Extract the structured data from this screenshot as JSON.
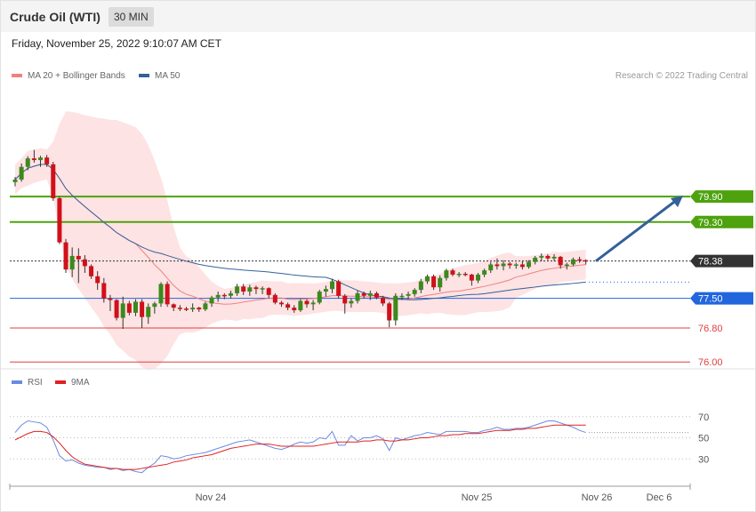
{
  "header": {
    "title": "Crude Oil (WTI)",
    "timeframe": "30 MIN"
  },
  "datetime": "Friday, November 25, 2022 9:10:07 AM CET",
  "legend": {
    "ma20": {
      "label": "MA 20 + Bollinger Bands",
      "color": "#f08080"
    },
    "ma50": {
      "label": "MA 50",
      "color": "#34609a"
    }
  },
  "credit": "Research © 2022 Trading Central",
  "rsi_legend": {
    "rsi": {
      "label": "RSI",
      "color": "#6a8be0"
    },
    "ma9": {
      "label": "9MA",
      "color": "#e02020"
    }
  },
  "chart_data": [
    {
      "type": "candlestick",
      "title": "",
      "y_range": [
        75.9,
        81.6
      ],
      "x_ticks": [
        "Nov 24",
        "Nov 25",
        "Nov 26",
        "Dec 6"
      ],
      "levels": [
        {
          "value": 79.9,
          "label": "79.90",
          "color": "#4ea20e",
          "kind": "resistance"
        },
        {
          "value": 79.3,
          "label": "79.30",
          "color": "#4ea20e",
          "kind": "resistance"
        },
        {
          "value": 78.38,
          "label": "78.38",
          "color": "#333333",
          "kind": "last-price"
        },
        {
          "value": 77.5,
          "label": "77.50",
          "color": "#2266dd",
          "kind": "pivot"
        },
        {
          "value": 76.8,
          "label": "76.80",
          "color": "#e04040",
          "kind": "support"
        },
        {
          "value": 76.0,
          "label": "76.00",
          "color": "#e04040",
          "kind": "support"
        }
      ],
      "target_arrow": {
        "from": 78.38,
        "to": 79.9
      },
      "candles": [
        [
          80.24,
          80.36,
          80.14,
          80.3
        ],
        [
          80.3,
          80.68,
          80.25,
          80.6
        ],
        [
          80.6,
          80.85,
          80.52,
          80.8
        ],
        [
          80.8,
          81.0,
          80.7,
          80.76
        ],
        [
          80.76,
          80.86,
          80.6,
          80.82
        ],
        [
          80.82,
          80.88,
          80.6,
          80.66
        ],
        [
          80.66,
          80.72,
          79.8,
          79.86
        ],
        [
          79.86,
          79.9,
          78.78,
          78.82
        ],
        [
          78.82,
          78.9,
          78.1,
          78.18
        ],
        [
          78.18,
          78.7,
          78.0,
          78.5
        ],
        [
          78.5,
          78.68,
          77.86,
          78.42
        ],
        [
          78.42,
          78.52,
          78.1,
          78.26
        ],
        [
          78.26,
          78.3,
          77.96,
          78.02
        ],
        [
          78.02,
          78.14,
          77.7,
          77.86
        ],
        [
          77.86,
          77.98,
          77.4,
          77.5
        ],
        [
          77.5,
          77.58,
          77.2,
          77.46
        ],
        [
          77.46,
          77.48,
          76.98,
          77.04
        ],
        [
          77.04,
          77.54,
          76.78,
          77.38
        ],
        [
          77.38,
          77.44,
          77.1,
          77.16
        ],
        [
          77.16,
          77.48,
          77.08,
          77.42
        ],
        [
          77.42,
          77.48,
          76.8,
          77.06
        ],
        [
          77.06,
          77.38,
          76.9,
          77.3
        ],
        [
          77.3,
          77.42,
          77.14,
          77.38
        ],
        [
          77.38,
          77.88,
          77.3,
          77.84
        ],
        [
          77.84,
          77.9,
          77.3,
          77.36
        ],
        [
          77.36,
          77.38,
          77.2,
          77.28
        ],
        [
          77.28,
          77.34,
          77.2,
          77.26
        ],
        [
          77.26,
          77.3,
          77.2,
          77.24
        ],
        [
          77.24,
          77.38,
          77.18,
          77.28
        ],
        [
          77.28,
          77.3,
          77.18,
          77.24
        ],
        [
          77.24,
          77.42,
          77.2,
          77.38
        ],
        [
          77.38,
          77.56,
          77.3,
          77.52
        ],
        [
          77.52,
          77.66,
          77.42,
          77.58
        ],
        [
          77.58,
          77.62,
          77.48,
          77.56
        ],
        [
          77.56,
          77.68,
          77.5,
          77.62
        ],
        [
          77.62,
          77.84,
          77.56,
          77.78
        ],
        [
          77.78,
          77.84,
          77.58,
          77.66
        ],
        [
          77.66,
          77.82,
          77.56,
          77.76
        ],
        [
          77.76,
          77.8,
          77.6,
          77.72
        ],
        [
          77.72,
          77.78,
          77.6,
          77.74
        ],
        [
          77.74,
          77.76,
          77.5,
          77.58
        ],
        [
          77.58,
          77.62,
          77.36,
          77.4
        ],
        [
          77.4,
          77.44,
          77.3,
          77.36
        ],
        [
          77.36,
          77.4,
          77.22,
          77.28
        ],
        [
          77.28,
          77.34,
          77.16,
          77.22
        ],
        [
          77.22,
          77.48,
          77.18,
          77.44
        ],
        [
          77.44,
          77.48,
          77.28,
          77.36
        ],
        [
          77.36,
          77.46,
          77.22,
          77.4
        ],
        [
          77.4,
          77.7,
          77.36,
          77.66
        ],
        [
          77.66,
          77.8,
          77.54,
          77.72
        ],
        [
          77.72,
          77.96,
          77.62,
          77.9
        ],
        [
          77.9,
          77.94,
          77.5,
          77.56
        ],
        [
          77.56,
          77.6,
          77.14,
          77.38
        ],
        [
          77.38,
          77.5,
          77.28,
          77.44
        ],
        [
          77.44,
          77.68,
          77.38,
          77.62
        ],
        [
          77.62,
          77.66,
          77.5,
          77.56
        ],
        [
          77.56,
          77.68,
          77.46,
          77.62
        ],
        [
          77.62,
          77.66,
          77.48,
          77.52
        ],
        [
          77.52,
          77.56,
          77.32,
          77.38
        ],
        [
          77.38,
          77.42,
          76.82,
          76.98
        ],
        [
          76.98,
          77.62,
          76.86,
          77.56
        ],
        [
          77.56,
          77.62,
          77.46,
          77.56
        ],
        [
          77.56,
          77.66,
          77.48,
          77.6
        ],
        [
          77.6,
          77.74,
          77.54,
          77.7
        ],
        [
          77.7,
          77.96,
          77.62,
          77.9
        ],
        [
          77.9,
          78.06,
          77.84,
          78.02
        ],
        [
          78.02,
          78.06,
          77.7,
          77.76
        ],
        [
          77.76,
          78.04,
          77.66,
          77.98
        ],
        [
          77.98,
          78.2,
          77.92,
          78.16
        ],
        [
          78.16,
          78.2,
          78.02,
          78.06
        ],
        [
          78.06,
          78.12,
          78.0,
          78.08
        ],
        [
          78.08,
          78.12,
          78.02,
          78.06
        ],
        [
          78.06,
          78.08,
          77.8,
          77.92
        ],
        [
          77.92,
          78.1,
          77.86,
          78.06
        ],
        [
          78.06,
          78.2,
          78.0,
          78.16
        ],
        [
          78.16,
          78.36,
          78.1,
          78.3
        ],
        [
          78.3,
          78.44,
          78.18,
          78.26
        ],
        [
          78.26,
          78.4,
          78.16,
          78.32
        ],
        [
          78.32,
          78.36,
          78.2,
          78.28
        ],
        [
          78.28,
          78.34,
          78.2,
          78.3
        ],
        [
          78.3,
          78.38,
          78.18,
          78.24
        ],
        [
          78.24,
          78.4,
          78.2,
          78.36
        ],
        [
          78.36,
          78.5,
          78.3,
          78.46
        ],
        [
          78.46,
          78.56,
          78.38,
          78.5
        ],
        [
          78.5,
          78.54,
          78.4,
          78.44
        ],
        [
          78.44,
          78.54,
          78.38,
          78.48
        ],
        [
          78.48,
          78.5,
          78.2,
          78.28
        ],
        [
          78.28,
          78.34,
          78.18,
          78.3
        ],
        [
          78.3,
          78.46,
          78.26,
          78.42
        ],
        [
          78.42,
          78.48,
          78.34,
          78.4
        ],
        [
          78.4,
          78.42,
          78.3,
          78.38
        ]
      ]
    },
    {
      "type": "line",
      "title": "",
      "y_range": [
        10,
        90
      ],
      "y_ticks": [
        30,
        50,
        70
      ],
      "series": [
        {
          "name": "RSI",
          "values": [
            55,
            62,
            66,
            65,
            64,
            60,
            48,
            33,
            28,
            29,
            26,
            24,
            23,
            22,
            22,
            20,
            21,
            19,
            20,
            18,
            17,
            22,
            26,
            33,
            32,
            30,
            31,
            33,
            34,
            35,
            36,
            38,
            40,
            42,
            44,
            46,
            47,
            48,
            46,
            44,
            42,
            40,
            39,
            41,
            44,
            46,
            45,
            46,
            50,
            49,
            56,
            43,
            43,
            52,
            47,
            50,
            50,
            52,
            49,
            38,
            50,
            48,
            50,
            52,
            53,
            55,
            54,
            53,
            56,
            56,
            56,
            56,
            55,
            55,
            57,
            58,
            60,
            58,
            58,
            59,
            59,
            60,
            62,
            64,
            66,
            66,
            64,
            62,
            60,
            57,
            55
          ]
        },
        {
          "name": "9MA",
          "values": [
            48,
            51,
            54,
            56,
            56,
            55,
            51,
            45,
            38,
            32,
            28,
            25,
            24,
            23,
            22,
            21,
            21,
            20,
            20,
            20,
            21,
            22,
            23,
            24,
            25,
            27,
            28,
            29,
            31,
            32,
            33,
            34,
            36,
            38,
            40,
            41,
            42,
            43,
            44,
            44,
            44,
            43,
            42,
            42,
            42,
            42,
            42,
            42,
            43,
            44,
            45,
            46,
            46,
            46,
            46,
            47,
            47,
            48,
            48,
            47,
            47,
            48,
            48,
            49,
            50,
            50,
            51,
            52,
            52,
            53,
            53,
            54,
            54,
            54,
            55,
            56,
            57,
            57,
            57,
            58,
            58,
            59,
            59,
            60,
            61,
            62,
            62,
            62,
            62,
            62,
            62
          ]
        }
      ]
    }
  ]
}
